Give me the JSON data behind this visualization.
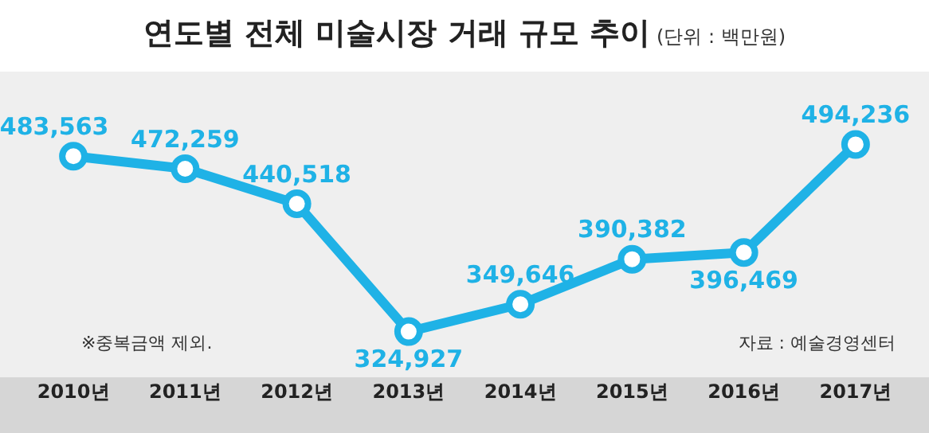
{
  "chart_data": {
    "type": "line",
    "title": "연도별 전체 미술시장 거래 규모 추이",
    "subtitle": "(단위 : 백만원)",
    "categories": [
      "2010년",
      "2011년",
      "2012년",
      "2013년",
      "2014년",
      "2015년",
      "2016년",
      "2017년"
    ],
    "series": [
      {
        "color": "#1fb2e6",
        "values": [
          483563,
          472259,
          440518,
          324927,
          349646,
          390382,
          396469,
          494236
        ],
        "value_labels": [
          "483,563",
          "472,259",
          "440,518",
          "324,927",
          "349,646",
          "390,382",
          "396,469",
          "494,236"
        ]
      }
    ],
    "tick_labels": "x",
    "grid": false,
    "legend": false,
    "marker": "circle",
    "line_style": "solid",
    "annotations": [
      "※중복금액 제외.",
      "자료 : 예술경영센터"
    ]
  }
}
